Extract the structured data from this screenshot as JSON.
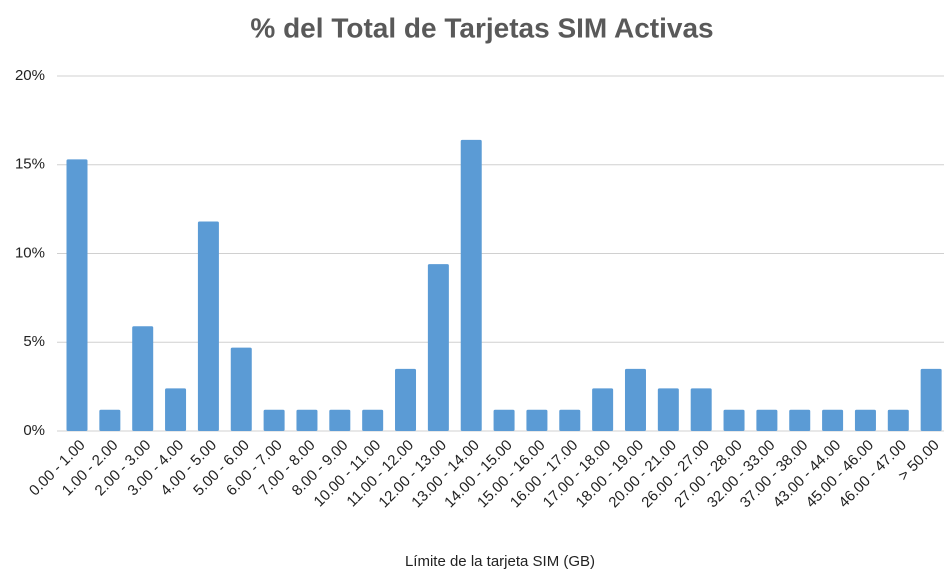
{
  "chart_data": {
    "type": "bar",
    "title": "% del Total de Tarjetas SIM Activas",
    "x_label": "Límite de la tarjeta SIM (GB)",
    "categories": [
      "0.00 - 1.00",
      "1.00 - 2.00",
      "2.00 - 3.00",
      "3.00 - 4.00",
      "4.00 - 5.00",
      "5.00 - 6.00",
      "6.00 - 7.00",
      "7.00 - 8.00",
      "8.00 - 9.00",
      "10.00 - 11.00",
      "11.00 - 12.00",
      "12.00 - 13.00",
      "13.00 - 14.00",
      "14.00 - 15.00",
      "15.00 - 16.00",
      "16.00 - 17.00",
      "17.00 - 18.00",
      "18.00 - 19.00",
      "20.00 - 21.00",
      "26.00 - 27.00",
      "27.00 - 28.00",
      "32.00 - 33.00",
      "37.00 - 38.00",
      "43.00 - 44.00",
      "45.00 - 46.00",
      "46.00 - 47.00",
      "> 50.00"
    ],
    "values": [
      15.3,
      1.2,
      5.9,
      2.4,
      11.8,
      4.7,
      1.2,
      1.2,
      1.2,
      1.2,
      3.5,
      9.4,
      16.4,
      1.2,
      1.2,
      1.2,
      2.4,
      3.5,
      2.4,
      2.4,
      1.2,
      1.2,
      1.2,
      1.2,
      1.2,
      1.2,
      3.5
    ],
    "color": "#5b9bd5",
    "ylim": [
      0,
      20
    ],
    "yticks": [
      {
        "value": 0,
        "label": "0%"
      },
      {
        "value": 5,
        "label": "5%"
      },
      {
        "value": 10,
        "label": "10%"
      },
      {
        "value": 15,
        "label": "15%"
      },
      {
        "value": 20,
        "label": "20%"
      }
    ],
    "grid": true
  }
}
